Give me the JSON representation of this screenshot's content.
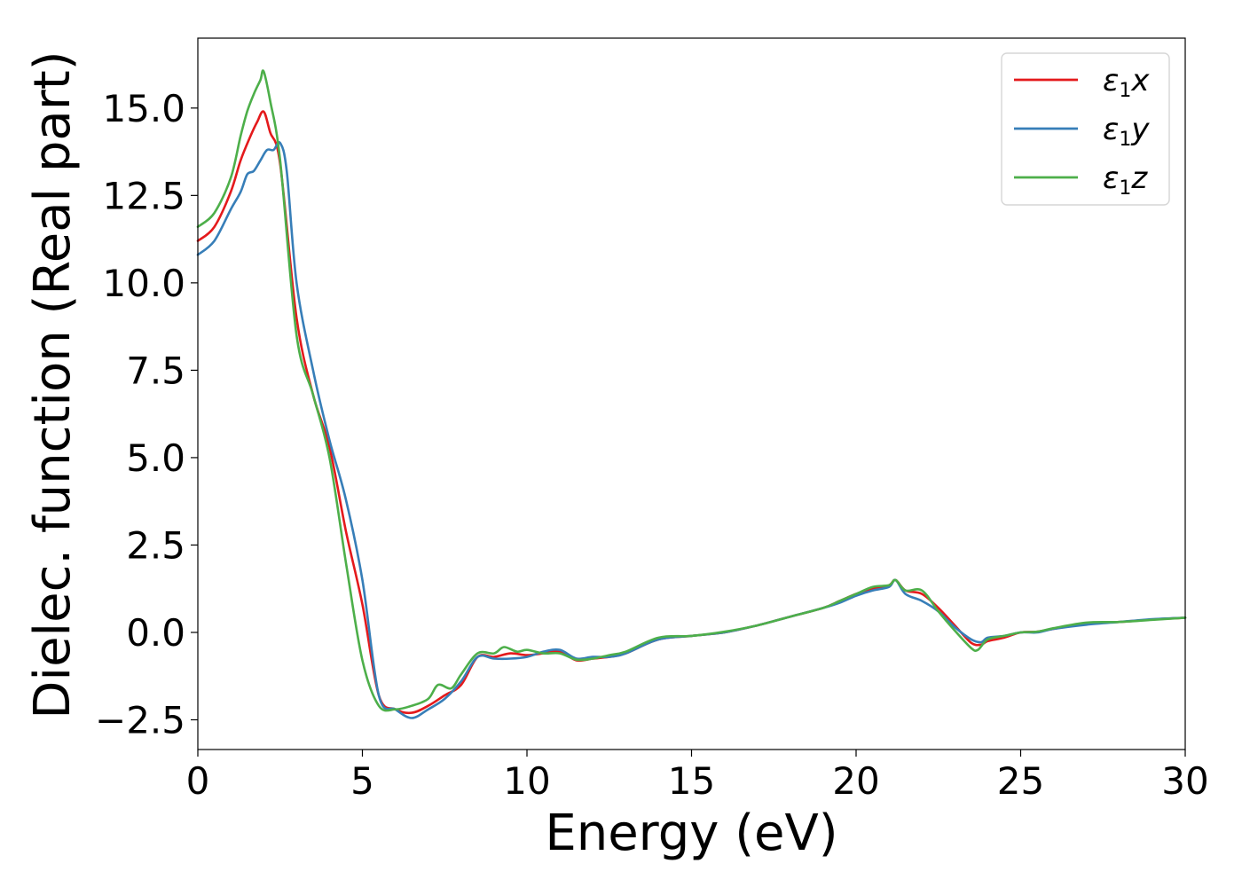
{
  "chart_data": {
    "type": "line",
    "xlabel": "Energy (eV)",
    "ylabel": "Dielec. function (Real part)",
    "xlim": [
      0,
      30
    ],
    "ylim": [
      -3.35,
      17.0
    ],
    "xticks": [
      0,
      5,
      10,
      15,
      20,
      25,
      30
    ],
    "xtick_labels": [
      "0",
      "5",
      "10",
      "15",
      "20",
      "25",
      "30"
    ],
    "yticks": [
      -2.5,
      0.0,
      2.5,
      5.0,
      7.5,
      10.0,
      12.5,
      15.0
    ],
    "ytick_labels": [
      "−2.5",
      "0.0",
      "2.5",
      "5.0",
      "7.5",
      "10.0",
      "12.5",
      "15.0"
    ],
    "grid": false,
    "legend_position": "top-right",
    "series": [
      {
        "name": "ε1x",
        "label_main": "ε",
        "label_sub": "1",
        "label_suffix": "x",
        "color": "#e41a1c",
        "x": [
          0,
          0.5,
          1,
          1.3,
          1.6,
          1.8,
          2.0,
          2.2,
          2.5,
          3.0,
          3.5,
          4.0,
          4.5,
          5.0,
          5.5,
          6.0,
          6.5,
          7.0,
          7.5,
          8.0,
          8.5,
          9.0,
          9.5,
          10.0,
          10.5,
          11.0,
          11.5,
          12.0,
          12.5,
          13.0,
          14.0,
          15.0,
          16.0,
          17.0,
          18.0,
          19.0,
          19.5,
          20.0,
          20.5,
          21.0,
          21.2,
          21.5,
          22.0,
          22.5,
          23.0,
          23.5,
          23.8,
          24.0,
          24.5,
          25.0,
          25.5,
          26.0,
          27.0,
          28.0,
          29.0,
          30.0
        ],
        "y": [
          11.2,
          11.6,
          12.6,
          13.5,
          14.2,
          14.6,
          14.9,
          14.3,
          13.4,
          9.0,
          6.8,
          5.3,
          2.9,
          0.8,
          -1.8,
          -2.2,
          -2.3,
          -2.1,
          -1.8,
          -1.5,
          -0.7,
          -0.7,
          -0.6,
          -0.65,
          -0.6,
          -0.55,
          -0.8,
          -0.75,
          -0.7,
          -0.6,
          -0.2,
          -0.1,
          0.0,
          0.2,
          0.45,
          0.7,
          0.9,
          1.1,
          1.25,
          1.35,
          1.5,
          1.2,
          1.1,
          0.7,
          0.2,
          -0.3,
          -0.35,
          -0.25,
          -0.15,
          0.0,
          0.02,
          0.1,
          0.25,
          0.3,
          0.37,
          0.42
        ]
      },
      {
        "name": "ε1y",
        "label_main": "ε",
        "label_sub": "1",
        "label_suffix": "y",
        "color": "#377eb8",
        "x": [
          0,
          0.5,
          1,
          1.3,
          1.5,
          1.7,
          1.9,
          2.1,
          2.3,
          2.5,
          2.7,
          3.0,
          3.5,
          4.0,
          4.5,
          5.0,
          5.5,
          6.0,
          6.5,
          7.0,
          7.5,
          8.0,
          8.5,
          9.0,
          9.5,
          10.0,
          10.5,
          11.0,
          11.5,
          12.0,
          12.5,
          13.0,
          14.0,
          15.0,
          16.0,
          17.0,
          18.0,
          19.0,
          19.5,
          20.0,
          20.5,
          21.0,
          21.2,
          21.5,
          22.0,
          22.5,
          23.0,
          23.5,
          23.8,
          24.0,
          24.5,
          25.0,
          25.5,
          26.0,
          27.0,
          28.0,
          29.0,
          30.0
        ],
        "y": [
          10.8,
          11.2,
          12.1,
          12.6,
          13.1,
          13.2,
          13.5,
          13.8,
          13.8,
          14.0,
          13.2,
          10.0,
          7.5,
          5.5,
          3.8,
          1.5,
          -1.8,
          -2.2,
          -2.45,
          -2.2,
          -1.9,
          -1.4,
          -0.7,
          -0.75,
          -0.75,
          -0.7,
          -0.55,
          -0.5,
          -0.75,
          -0.7,
          -0.7,
          -0.6,
          -0.2,
          -0.1,
          0.0,
          0.2,
          0.45,
          0.7,
          0.85,
          1.05,
          1.2,
          1.3,
          1.5,
          1.1,
          0.9,
          0.6,
          0.15,
          -0.2,
          -0.28,
          -0.15,
          -0.1,
          0.0,
          0.0,
          0.1,
          0.22,
          0.3,
          0.38,
          0.42
        ]
      },
      {
        "name": "ε1z",
        "label_main": "ε",
        "label_sub": "1",
        "label_suffix": "z",
        "color": "#4daf4a",
        "x": [
          0,
          0.5,
          1,
          1.3,
          1.5,
          1.7,
          1.9,
          2.0,
          2.2,
          2.5,
          3.0,
          3.5,
          4.0,
          4.5,
          5.0,
          5.5,
          6.0,
          6.5,
          7.0,
          7.3,
          7.7,
          8.0,
          8.5,
          9.0,
          9.3,
          9.7,
          10.0,
          10.5,
          11.0,
          11.5,
          12.0,
          12.5,
          13.0,
          14.0,
          15.0,
          16.0,
          17.0,
          18.0,
          19.0,
          19.5,
          20.0,
          20.5,
          21.0,
          21.2,
          21.5,
          22.0,
          22.5,
          23.0,
          23.5,
          23.7,
          24.0,
          24.5,
          25.0,
          25.5,
          26.0,
          27.0,
          28.0,
          29.0,
          30.0
        ],
        "y": [
          11.6,
          12.0,
          13.0,
          14.2,
          14.9,
          15.4,
          15.8,
          16.05,
          15.2,
          13.5,
          8.5,
          6.8,
          5.0,
          2.0,
          -0.8,
          -2.1,
          -2.2,
          -2.1,
          -1.9,
          -1.5,
          -1.6,
          -1.2,
          -0.6,
          -0.6,
          -0.42,
          -0.55,
          -0.5,
          -0.6,
          -0.6,
          -0.78,
          -0.75,
          -0.65,
          -0.55,
          -0.15,
          -0.1,
          0.02,
          0.2,
          0.45,
          0.7,
          0.9,
          1.1,
          1.3,
          1.35,
          1.5,
          1.2,
          1.2,
          0.6,
          0.05,
          -0.45,
          -0.5,
          -0.2,
          -0.1,
          0.0,
          0.02,
          0.12,
          0.28,
          0.3,
          0.36,
          0.42
        ]
      }
    ]
  }
}
